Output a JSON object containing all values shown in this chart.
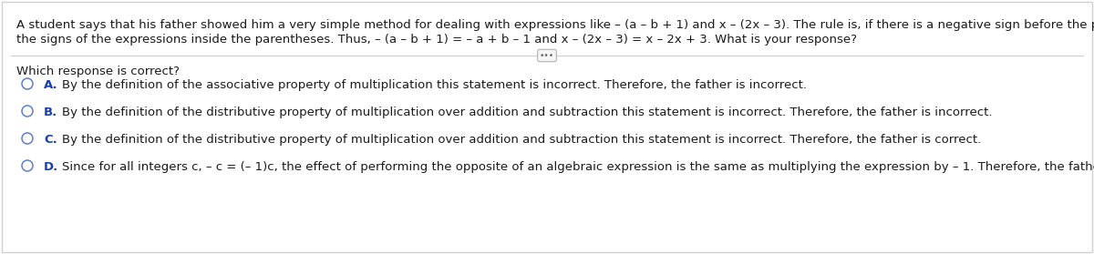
{
  "bg_color": "#ffffff",
  "border_color": "#d0d0d0",
  "text_color": "#1a1a1a",
  "label_color": "#1a3faa",
  "circle_color": "#5b7fcc",
  "question_line1": "A student says that his father showed him a very simple method for dealing with expressions like – (a – b + 1) and x – (2x – 3). The rule is, if there is a negative sign before the parentheses, change",
  "question_line2": "the signs of the expressions inside the parentheses. Thus, – (a – b + 1) = – a + b – 1 and x – (2x – 3) = x – 2x + 3. What is your response?",
  "which_text": "Which response is correct?",
  "options": [
    {
      "label": "A.",
      "text": "By the definition of the associative property of multiplication this statement is incorrect. Therefore, the father is incorrect."
    },
    {
      "label": "B.",
      "text": "By the definition of the distributive property of multiplication over addition and subtraction this statement is incorrect. Therefore, the father is incorrect."
    },
    {
      "label": "C.",
      "text": "By the definition of the distributive property of multiplication over addition and subtraction this statement is incorrect. Therefore, the father is correct."
    },
    {
      "label": "D.",
      "text": "Since for all integers c, – c = (– 1)c, the effect of performing the opposite of an algebraic expression is the same as multiplying the expression by – 1. Therefore, the father is correct."
    }
  ],
  "font_size_question": 9.5,
  "font_size_which": 9.5,
  "font_size_options": 9.5,
  "dots_text": "•••"
}
